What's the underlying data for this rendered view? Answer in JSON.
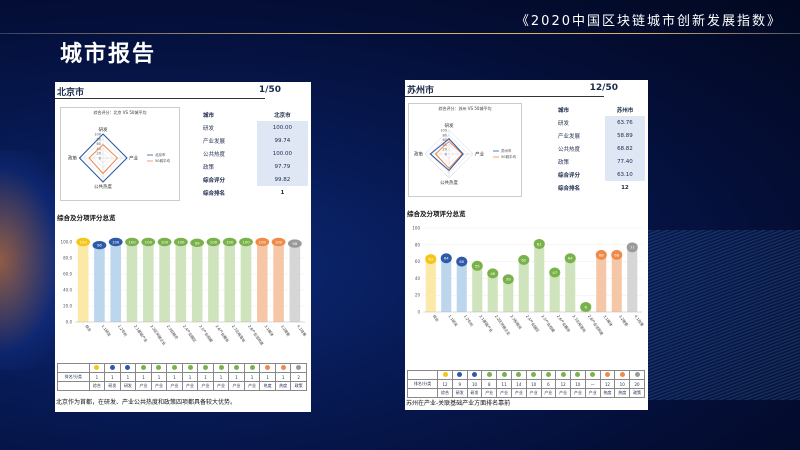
{
  "header": {
    "title": "《2020中国区块链城市创新发展指数》",
    "page_title": "城市报告"
  },
  "colors": {
    "gold": "#f5c518",
    "blue": "#2e5aa8",
    "lightblue": "#bcd6ee",
    "green": "#79b24a",
    "lightgreen": "#cfe3bc",
    "orange": "#f08a4b",
    "lightorange": "#f6c7a6",
    "gray": "#9a9a9a",
    "lightgray": "#d6d6d6",
    "yellowbar": "#fbe9a8"
  },
  "left": {
    "city": "北京市",
    "rank": "1/50",
    "radar_title": "综合评分：北京 VS 50城平均",
    "radar_labels": [
      "研发",
      "产业",
      "公共热度",
      "政策"
    ],
    "radar_ticks": [
      "100",
      "80",
      "60",
      "40",
      "20",
      "0"
    ],
    "legend": [
      "北京市",
      "50城平均"
    ],
    "table": [
      {
        "k": "城市",
        "v": "北京市",
        "head": true
      },
      {
        "k": "研发",
        "v": "100.00"
      },
      {
        "k": "产业发展",
        "v": "99.74"
      },
      {
        "k": "公共热度",
        "v": "100.00"
      },
      {
        "k": "政策",
        "v": "97.79"
      },
      {
        "k": "综合评分",
        "v": "99.82",
        "head": true
      },
      {
        "k": "综合排名",
        "v": "1",
        "head": true
      }
    ],
    "section_title": "综合及分项评分总览",
    "yticks": [
      "100.0",
      "80.0",
      "60.0",
      "40.0",
      "20.0",
      "0.0"
    ],
    "bottom_label": "排名/分类",
    "summary": "北京作为首都，在研发、产业公共热度和政策四项都具备较大优势。",
    "rank_row": [
      "1",
      "1",
      "1",
      "1",
      "1",
      "1",
      "1",
      "1",
      "1",
      "1",
      "1",
      "1",
      "1",
      "2"
    ],
    "cat_row": [
      "综合",
      "研发",
      "研发",
      "产业",
      "产业",
      "产业",
      "产业",
      "产业",
      "产业",
      "产业",
      "产业",
      "热度",
      "热度",
      "政策"
    ]
  },
  "right": {
    "city": "苏州市",
    "rank": "12/50",
    "radar_title": "综合评分：苏州 VS 50城平均",
    "radar_labels": [
      "研发",
      "产业",
      "公共热度",
      "政策"
    ],
    "radar_ticks": [
      "100",
      "80",
      "60",
      "40",
      "20",
      "0"
    ],
    "legend": [
      "苏州市",
      "50城平均"
    ],
    "table": [
      {
        "k": "城市",
        "v": "苏州市",
        "head": true
      },
      {
        "k": "研发",
        "v": "63.76"
      },
      {
        "k": "产业发展",
        "v": "58.89"
      },
      {
        "k": "公共热度",
        "v": "68.82"
      },
      {
        "k": "政策",
        "v": "77.40"
      },
      {
        "k": "综合评分",
        "v": "63.10",
        "head": true
      },
      {
        "k": "综合排名",
        "v": "12",
        "head": true
      }
    ],
    "section_title": "综合及分项评分总览",
    "yticks": [
      "100",
      "80",
      "60",
      "40",
      "20",
      "0"
    ],
    "bottom_label": "排名/分类",
    "summary": "苏州在产业-关联基础产业方面排名靠前",
    "rank_row": [
      "12",
      "9",
      "10",
      "8",
      "11",
      "14",
      "10",
      "6",
      "12",
      "10",
      "—",
      "12",
      "10",
      "20"
    ],
    "cat_row": [
      "综合",
      "研发",
      "研发",
      "产业",
      "产业",
      "产业",
      "产业",
      "产业",
      "产业",
      "产业",
      "产业",
      "热度",
      "热度",
      "政策"
    ]
  },
  "chart_data": [
    {
      "type": "bar",
      "title": "综合及分项评分总览",
      "categories": [
        "综合",
        "1.1研发",
        "1.2专利",
        "2.1基础产业",
        "2.2区块链企业",
        "2.3投融资",
        "2.4产业园区",
        "2.5产业规模",
        "2.6产业服务",
        "2.7应用落地",
        "2.8产业活跃度",
        "3.1媒体",
        "3.2搜索",
        "4.1政策"
      ],
      "values": [
        100,
        96,
        100,
        100,
        100,
        100,
        100,
        99,
        100,
        100,
        100,
        100,
        100,
        98
      ],
      "ylim": [
        0,
        100
      ]
    },
    {
      "type": "bar",
      "title": "综合及分项评分总览",
      "categories": [
        "综合",
        "1.1研发",
        "1.2专利",
        "2.1基础产业",
        "2.2区块链企业",
        "2.3投融资",
        "2.4产业园区",
        "2.5产业规模",
        "2.6产业服务",
        "2.7应用落地",
        "2.8产业活跃度",
        "3.1媒体",
        "3.2搜索",
        "4.1政策"
      ],
      "values": [
        63,
        64,
        60,
        55,
        46,
        39,
        62,
        81,
        47,
        64,
        6,
        68,
        68,
        77
      ],
      "ylim": [
        0,
        100
      ]
    }
  ],
  "radar_data": [
    {
      "city": [
        100,
        99.74,
        100,
        97.79
      ],
      "avg": [
        55,
        60,
        65,
        58
      ]
    },
    {
      "city": [
        63.76,
        58.89,
        68.82,
        77.4
      ],
      "avg": [
        52,
        55,
        60,
        56
      ]
    }
  ]
}
